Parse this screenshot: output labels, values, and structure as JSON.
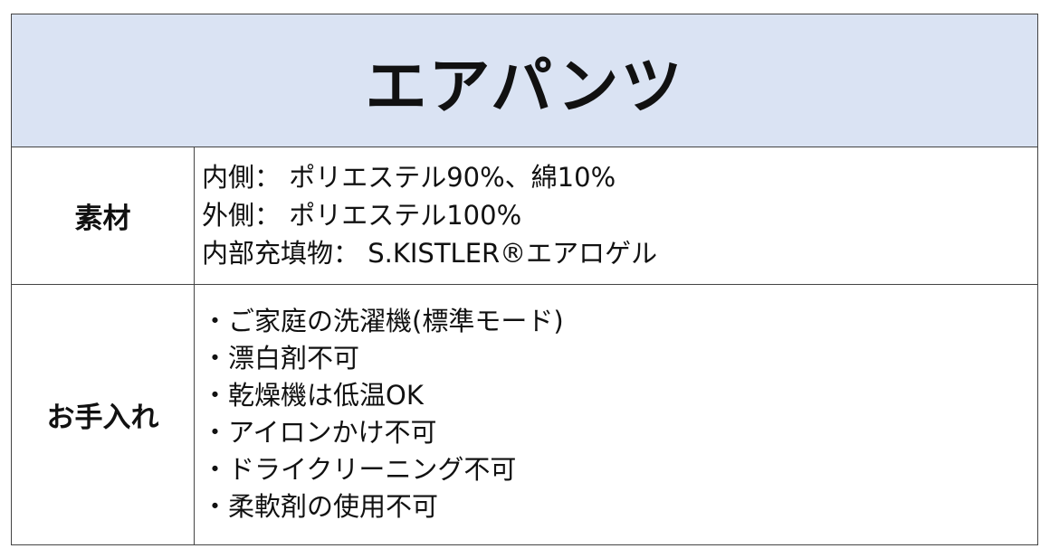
{
  "title": "エアパンツ",
  "rows": [
    {
      "label": "素材",
      "lines": [
        "内側： ポリエステル90%、綿10%",
        "外側： ポリエステル100%",
        "内部充填物： S.KISTLER®エアロゲル"
      ]
    },
    {
      "label": "お手入れ",
      "lines": [
        "・ご家庭の洗濯機(標準モード)",
        "・漂白剤不可",
        "・乾燥機は低温OK",
        "・アイロンかけ不可",
        "・ドライクリーニング不可",
        "・柔軟剤の使用不可"
      ]
    }
  ],
  "colors": {
    "header_bg": "#dae3f3",
    "border": "#444444"
  }
}
